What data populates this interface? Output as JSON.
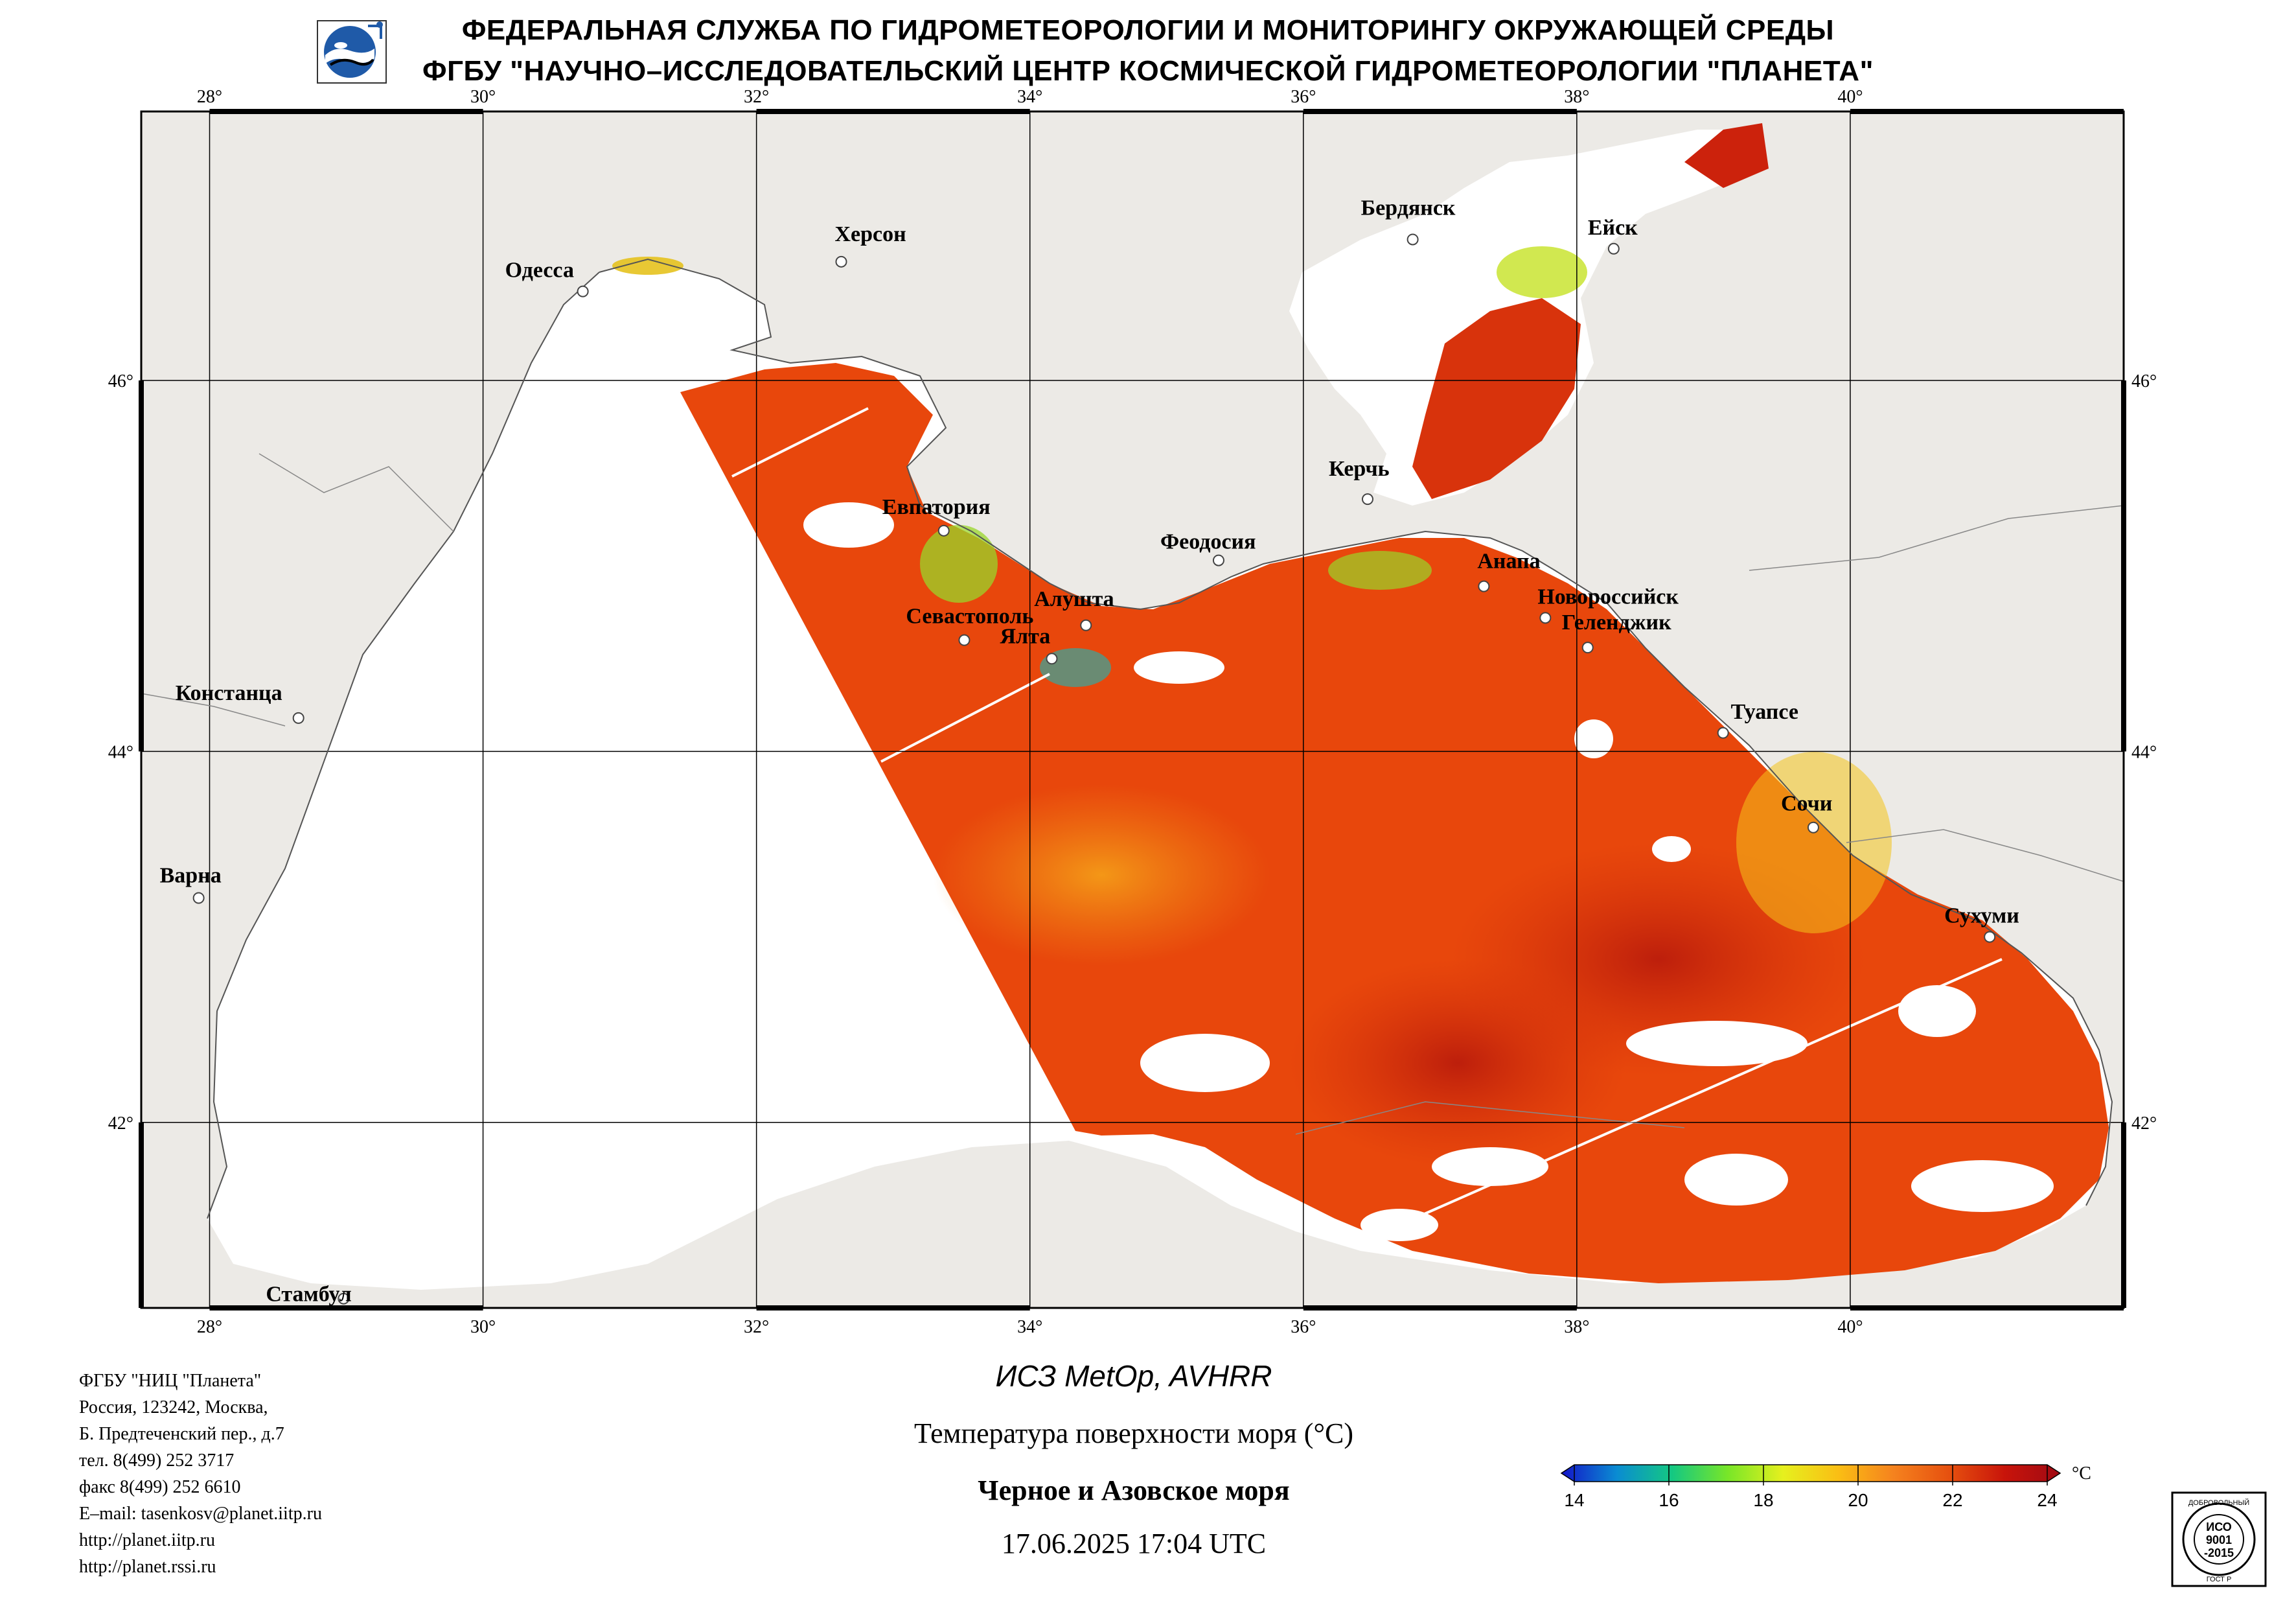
{
  "header": {
    "line1": "ФЕДЕРАЛЬНАЯ СЛУЖБА ПО ГИДРОМЕТЕОРОЛОГИИ И МОНИТОРИНГУ ОКРУЖАЮЩЕЙ СРЕДЫ",
    "line2": "ФГБУ \"НАУЧНО–ИССЛЕДОВАТЕЛЬСКИЙ ЦЕНТР КОСМИЧЕСКОЙ ГИДРОМЕТЕОРОЛОГИИ \"ПЛАНЕТА\""
  },
  "map": {
    "lon_range": [
      27.5,
      42.0
    ],
    "lat_range": [
      41.0,
      47.45
    ],
    "lon_ticks": [
      "28°",
      "30°",
      "32°",
      "34°",
      "36°",
      "38°",
      "40°"
    ],
    "lat_ticks": [
      "46°",
      "44°",
      "42°"
    ],
    "cities": [
      {
        "name": "Одесса",
        "lon": 30.73,
        "lat": 46.48
      },
      {
        "name": "Херсон",
        "lon": 32.62,
        "lat": 46.64
      },
      {
        "name": "Бердянск",
        "lon": 36.8,
        "lat": 46.76
      },
      {
        "name": "Ейск",
        "lon": 38.27,
        "lat": 46.71
      },
      {
        "name": "Евпатория",
        "lon": 33.37,
        "lat": 45.19
      },
      {
        "name": "Керчь",
        "lon": 36.47,
        "lat": 45.36
      },
      {
        "name": "Феодосия",
        "lon": 35.38,
        "lat": 45.03
      },
      {
        "name": "Анапа",
        "lon": 37.32,
        "lat": 44.89
      },
      {
        "name": "Новороссийск",
        "lon": 37.77,
        "lat": 44.72
      },
      {
        "name": "Геленджик",
        "lon": 38.08,
        "lat": 44.56
      },
      {
        "name": "Алушта",
        "lon": 34.41,
        "lat": 44.68
      },
      {
        "name": "Севастополь",
        "lon": 33.52,
        "lat": 44.6
      },
      {
        "name": "Ялта",
        "lon": 34.16,
        "lat": 44.5
      },
      {
        "name": "Констанца",
        "lon": 28.65,
        "lat": 44.18
      },
      {
        "name": "Туапсе",
        "lon": 39.07,
        "lat": 44.1
      },
      {
        "name": "Сочи",
        "lon": 39.73,
        "lat": 43.59
      },
      {
        "name": "Варна",
        "lon": 27.92,
        "lat": 43.21
      },
      {
        "name": "Сухуми",
        "lon": 41.02,
        "lat": 43.0
      },
      {
        "name": "Стамбул",
        "lon": 28.98,
        "lat": 41.05
      }
    ]
  },
  "colors": {
    "land": "#eceae6",
    "sea_warm": "#e8470c",
    "sea_hot": "#c9200a",
    "sea_cool": "#f08a16",
    "cloud": "#ffffff"
  },
  "info": {
    "org": "ФГБУ \"НИЦ \"Планета\"",
    "address1": "Россия, 123242, Москва,",
    "address2": "Б. Предтеченский пер., д.7",
    "phone": "тел. 8(499) 252 3717",
    "fax": "факс 8(499) 252 6610",
    "email": "E–mail: tasenkosv@planet.iitp.ru",
    "url1": "http://planet.iitp.ru",
    "url2": "http://planet.rssi.ru"
  },
  "caption": {
    "satellite": "ИСЗ MetOp, AVHRR",
    "parameter": "Температура поверхности моря (°C)",
    "region": "Черное и Азовское моря",
    "datetime": "17.06.2025 17:04 UTC"
  },
  "legend": {
    "unit": "°C",
    "min": 14,
    "max": 24,
    "ticks": [
      "14",
      "16",
      "18",
      "20",
      "22",
      "24"
    ],
    "stops": [
      "#1414c8",
      "#0a8cd2",
      "#14c882",
      "#78e628",
      "#e6f01e",
      "#fabe14",
      "#f5821e",
      "#e6500f",
      "#c8140a",
      "#a00a14"
    ]
  },
  "cert": {
    "top_text": "ДОБРОВОЛЬНЫЙ",
    "line1": "ИСО",
    "line2": "9001",
    "line3": "-2015",
    "bottom_text": "ГОСТ Р"
  }
}
